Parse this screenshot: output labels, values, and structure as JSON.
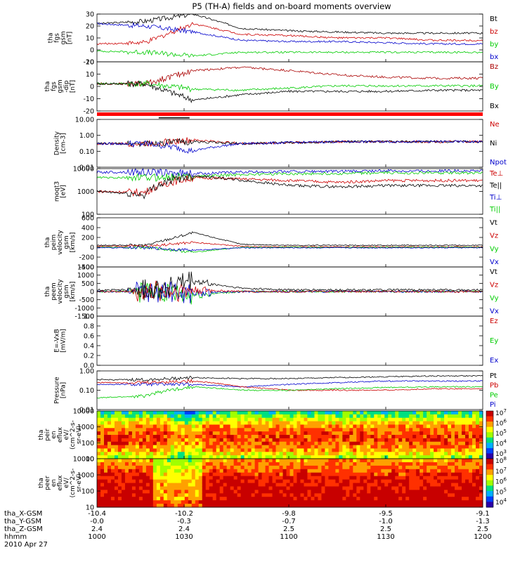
{
  "title": "P5 (TH-A) fields and on-board moments overview",
  "chart_data": [
    {
      "type": "line",
      "ylabel": [
        "tha",
        "fgs",
        "gsm",
        "[nT]"
      ],
      "ylim": [
        -10,
        30
      ],
      "yticks": [
        "30",
        "20",
        "10",
        "0",
        "-10"
      ],
      "legend": [
        {
          "name": "Bt",
          "color": "#000000"
        },
        {
          "name": "bz",
          "color": "#cc0000"
        },
        {
          "name": "by",
          "color": "#00cc00"
        },
        {
          "name": "bx",
          "color": "#0000cc"
        }
      ]
    },
    {
      "type": "line",
      "ylabel": [
        "tha",
        "fgs",
        "gsm",
        "-dip",
        "[nT]"
      ],
      "ylim": [
        -25,
        20
      ],
      "yticks": [
        "20",
        "10",
        "0",
        "-10",
        "-20"
      ],
      "legend": [
        {
          "name": "Bz",
          "color": "#aa0000"
        },
        {
          "name": "By",
          "color": "#00cc00"
        },
        {
          "name": "Bx",
          "color": "#000000"
        }
      ]
    },
    {
      "type": "line",
      "ylabel": [
        "Density",
        "[cm-3]"
      ],
      "log": true,
      "ylim": [
        0.01,
        10
      ],
      "yticks": [
        "10.00",
        "1.00",
        "0.10",
        "0.01"
      ],
      "legend": [
        {
          "name": "Ne",
          "color": "#cc0000"
        },
        {
          "name": "Ni",
          "color": "#000000"
        },
        {
          "name": "Npot",
          "color": "#0000cc"
        }
      ]
    },
    {
      "type": "line",
      "ylabel": [
        "moqt3",
        "[eV]"
      ],
      "log": true,
      "ylim": [
        100,
        10000
      ],
      "yticks": [
        "10000",
        "1000",
        "100"
      ],
      "legend": [
        {
          "name": "Te⊥",
          "color": "#cc0000"
        },
        {
          "name": "Te||",
          "color": "#000000"
        },
        {
          "name": "Ti⊥",
          "color": "#0000cc"
        },
        {
          "name": "Ti||",
          "color": "#00cc00"
        }
      ]
    },
    {
      "type": "line",
      "ylabel": [
        "tha",
        "peim",
        "velocity",
        "gsm",
        "[km/s]"
      ],
      "ylim": [
        -400,
        600
      ],
      "yticks": [
        "600",
        "400",
        "200",
        "0",
        "-200",
        "-400"
      ],
      "legend": [
        {
          "name": "Vt",
          "color": "#000000"
        },
        {
          "name": "Vz",
          "color": "#cc0000"
        },
        {
          "name": "Vy",
          "color": "#00cc00"
        },
        {
          "name": "Vx",
          "color": "#0000cc"
        }
      ]
    },
    {
      "type": "line",
      "ylabel": [
        "tha",
        "peem",
        "velocity",
        "gsm",
        "[km/s]"
      ],
      "ylim": [
        -1500,
        1500
      ],
      "yticks": [
        "1500",
        "1000",
        "500",
        "0",
        "-500",
        "-1000",
        "-1500"
      ],
      "legend": [
        {
          "name": "Vt",
          "color": "#000000"
        },
        {
          "name": "Vz",
          "color": "#cc0000"
        },
        {
          "name": "Vy",
          "color": "#00cc00"
        },
        {
          "name": "Vx",
          "color": "#0000cc"
        }
      ]
    },
    {
      "type": "line",
      "ylabel": [
        "E=-VxB",
        "[mV/m]"
      ],
      "ylim": [
        0,
        1
      ],
      "yticks": [
        "1.0",
        "0.8",
        "0.6",
        "0.4",
        "0.2",
        "0.0"
      ],
      "legend": [
        {
          "name": "Ez",
          "color": "#cc0000"
        },
        {
          "name": "Ey",
          "color": "#00cc00"
        },
        {
          "name": "Ex",
          "color": "#0000cc"
        }
      ]
    },
    {
      "type": "line",
      "ylabel": [
        "Pressure",
        "[nPa]"
      ],
      "log": true,
      "ylim": [
        0.01,
        1
      ],
      "yticks": [
        "1.00",
        "0.10",
        "0.01"
      ],
      "legend": [
        {
          "name": "Pt",
          "color": "#000000"
        },
        {
          "name": "Pb",
          "color": "#cc0000"
        },
        {
          "name": "Pe",
          "color": "#00cc00"
        },
        {
          "name": "Pi",
          "color": "#0000cc"
        }
      ]
    },
    {
      "type": "heatmap",
      "ylabel": [
        "tha",
        "peir",
        "en",
        "eflux",
        "eV/",
        "(cm^2-s-",
        "sr-eV)"
      ],
      "log": true,
      "ylim": [
        10,
        10000
      ],
      "yticks": [
        "10000",
        "1000",
        "100",
        "10"
      ],
      "colorbar": [
        "10^7",
        "10^6",
        "10^5",
        "10^4",
        "10^3"
      ]
    },
    {
      "type": "heatmap",
      "ylabel": [
        "tha",
        "peer",
        "en",
        "eflux",
        "eV/",
        "(cm^2-s-",
        "sr-eV)"
      ],
      "log": true,
      "ylim": [
        10,
        10000
      ],
      "yticks": [
        "10000",
        "1000",
        "100",
        "10"
      ],
      "colorbar": [
        "10^8",
        "10^7",
        "10^6",
        "10^5",
        "10^4"
      ]
    }
  ],
  "x_axis": {
    "rows": [
      {
        "label": "tha_X-GSM",
        "values": [
          "-10.4",
          "-10.2",
          "-9.8",
          "-9.5",
          "-9.1"
        ]
      },
      {
        "label": "tha_Y-GSM",
        "values": [
          "-0.0",
          "-0.3",
          "-0.7",
          "-1.0",
          "-1.3"
        ]
      },
      {
        "label": "tha_Z-GSM",
        "values": [
          "2.4",
          "2.4",
          "2.5",
          "2.5",
          "2.5"
        ]
      },
      {
        "label": "hhmm",
        "values": [
          "1000",
          "1030",
          "1100",
          "1130",
          "1200"
        ]
      }
    ],
    "date": "2010 Apr 27"
  }
}
